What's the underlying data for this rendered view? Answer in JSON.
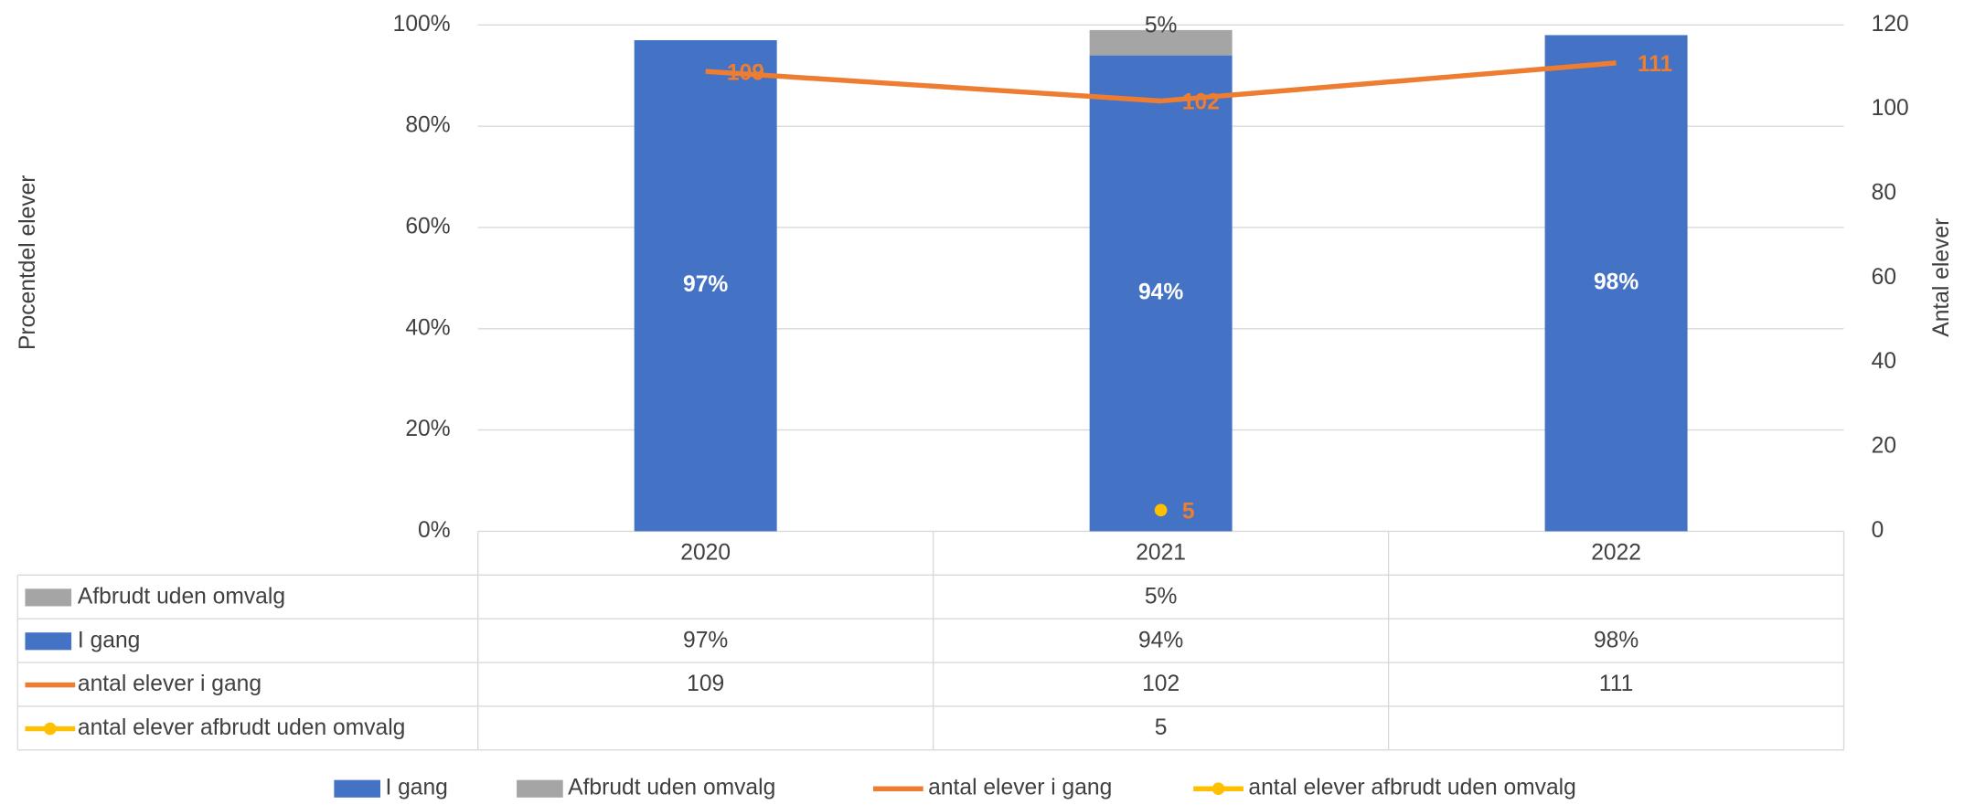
{
  "chart_data": {
    "type": "bar",
    "stacked": true,
    "categories": [
      "2020",
      "2021",
      "2022"
    ],
    "y_label": "Procentdel elever",
    "y2_label": "Antal elever",
    "ylim": [
      0,
      100
    ],
    "yticks": [
      {
        "value": 0,
        "label": "0%"
      },
      {
        "value": 20,
        "label": "20%"
      },
      {
        "value": 40,
        "label": "40%"
      },
      {
        "value": 60,
        "label": "60%"
      },
      {
        "value": 80,
        "label": "80%"
      },
      {
        "value": 100,
        "label": "100%"
      }
    ],
    "y2lim": [
      0,
      120
    ],
    "y2ticks": [
      0,
      20,
      40,
      60,
      80,
      100,
      120
    ],
    "grid": true,
    "legend": "bottom",
    "data_table": true,
    "series": [
      {
        "name": "I gang",
        "type": "bar",
        "color": "#4472c4",
        "values": [
          97,
          94,
          98
        ],
        "value_labels": [
          "97%",
          "94%",
          "98%"
        ]
      },
      {
        "name": "Afbrudt uden omvalg",
        "type": "bar",
        "color": "#a5a5a5",
        "values": [
          null,
          5,
          null
        ],
        "value_labels": [
          null,
          "5%",
          null
        ]
      },
      {
        "name": "antal elever i gang",
        "type": "line",
        "axis": "y2",
        "color": "#ed7d31",
        "values": [
          109,
          102,
          111
        ]
      },
      {
        "name": "antal elever afbrudt uden omvalg",
        "type": "line",
        "axis": "y2",
        "color": "#ffc000",
        "markers": true,
        "values": [
          null,
          5,
          null
        ]
      }
    ]
  }
}
